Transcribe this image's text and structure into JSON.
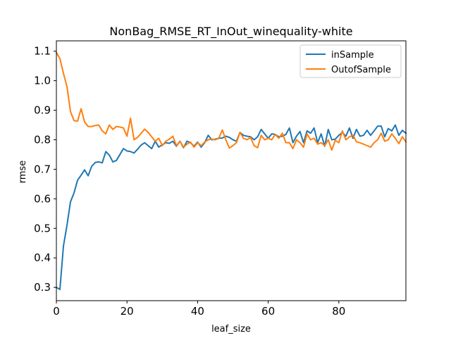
{
  "chart_data": {
    "type": "line",
    "title": "NonBag_RMSE_RT_InOut_winequality-white",
    "xlabel": "leaf_size",
    "ylabel": "rmse",
    "xlim": [
      0,
      99
    ],
    "ylim": [
      0.255,
      1.135
    ],
    "xticks": [
      0,
      20,
      40,
      60,
      80
    ],
    "yticks": [
      0.3,
      0.4,
      0.5,
      0.6,
      0.7,
      0.8,
      0.9,
      1.0,
      1.1
    ],
    "ytick_labels": [
      "0.3",
      "0.4",
      "0.5",
      "0.6",
      "0.7",
      "0.8",
      "0.9",
      "1.0",
      "1.1"
    ],
    "grid": false,
    "legend_position": "top-right",
    "x": [
      0,
      1,
      2,
      3,
      4,
      5,
      6,
      7,
      8,
      9,
      10,
      11,
      12,
      13,
      14,
      15,
      16,
      17,
      18,
      19,
      20,
      21,
      22,
      23,
      24,
      25,
      26,
      27,
      28,
      29,
      30,
      31,
      32,
      33,
      34,
      35,
      36,
      37,
      38,
      39,
      40,
      41,
      42,
      43,
      44,
      45,
      46,
      47,
      48,
      49,
      50,
      51,
      52,
      53,
      54,
      55,
      56,
      57,
      58,
      59,
      60,
      61,
      62,
      63,
      64,
      65,
      66,
      67,
      68,
      69,
      70,
      71,
      72,
      73,
      74,
      75,
      76,
      77,
      78,
      79,
      80,
      81,
      82,
      83,
      84,
      85,
      86,
      87,
      88,
      89,
      90,
      91,
      92,
      93,
      94,
      95,
      96,
      97,
      98,
      99
    ],
    "series": [
      {
        "name": "inSample",
        "color": "#1f77b4",
        "values": [
          0.3,
          0.293,
          0.44,
          0.51,
          0.59,
          0.62,
          0.663,
          0.68,
          0.698,
          0.678,
          0.71,
          0.723,
          0.725,
          0.722,
          0.76,
          0.748,
          0.725,
          0.73,
          0.75,
          0.77,
          0.762,
          0.76,
          0.755,
          0.768,
          0.782,
          0.79,
          0.78,
          0.77,
          0.795,
          0.775,
          0.783,
          0.79,
          0.788,
          0.795,
          0.778,
          0.795,
          0.773,
          0.795,
          0.79,
          0.778,
          0.792,
          0.775,
          0.79,
          0.815,
          0.8,
          0.802,
          0.805,
          0.806,
          0.812,
          0.808,
          0.8,
          0.795,
          0.825,
          0.815,
          0.812,
          0.81,
          0.8,
          0.81,
          0.835,
          0.82,
          0.805,
          0.82,
          0.818,
          0.81,
          0.812,
          0.818,
          0.84,
          0.79,
          0.812,
          0.828,
          0.79,
          0.83,
          0.822,
          0.84,
          0.79,
          0.82,
          0.778,
          0.835,
          0.8,
          0.802,
          0.815,
          0.825,
          0.812,
          0.84,
          0.805,
          0.835,
          0.812,
          0.815,
          0.832,
          0.815,
          0.83,
          0.846,
          0.846,
          0.81,
          0.838,
          0.83,
          0.85,
          0.815,
          0.832,
          0.822
        ]
      },
      {
        "name": "OutofSample",
        "color": "#ff7f0e",
        "values": [
          1.095,
          1.075,
          1.025,
          0.98,
          0.895,
          0.865,
          0.863,
          0.905,
          0.86,
          0.845,
          0.845,
          0.848,
          0.85,
          0.83,
          0.82,
          0.85,
          0.835,
          0.845,
          0.843,
          0.84,
          0.812,
          0.873,
          0.8,
          0.808,
          0.822,
          0.836,
          0.825,
          0.81,
          0.795,
          0.805,
          0.78,
          0.795,
          0.802,
          0.812,
          0.78,
          0.795,
          0.775,
          0.785,
          0.792,
          0.775,
          0.79,
          0.78,
          0.792,
          0.8,
          0.802,
          0.8,
          0.805,
          0.833,
          0.8,
          0.772,
          0.78,
          0.79,
          0.825,
          0.805,
          0.8,
          0.808,
          0.78,
          0.773,
          0.815,
          0.8,
          0.805,
          0.8,
          0.818,
          0.805,
          0.822,
          0.79,
          0.79,
          0.77,
          0.8,
          0.79,
          0.775,
          0.82,
          0.8,
          0.805,
          0.785,
          0.79,
          0.78,
          0.8,
          0.765,
          0.798,
          0.79,
          0.83,
          0.8,
          0.81,
          0.815,
          0.793,
          0.79,
          0.785,
          0.78,
          0.775,
          0.79,
          0.8,
          0.822,
          0.795,
          0.8,
          0.82,
          0.805,
          0.787,
          0.81,
          0.793
        ]
      }
    ]
  }
}
